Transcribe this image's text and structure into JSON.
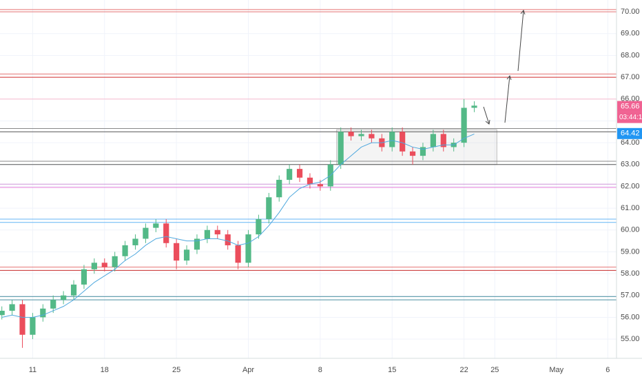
{
  "chart_data": {
    "type": "candlestick",
    "x": [
      8,
      9,
      10,
      11,
      12,
      13,
      14,
      15,
      16,
      17,
      18,
      19,
      20,
      21,
      22,
      23,
      24,
      25,
      26,
      27,
      28,
      29,
      30,
      31,
      32,
      33,
      34,
      35,
      36,
      37,
      38,
      39,
      40,
      41,
      42,
      43,
      44,
      45,
      46,
      47,
      48,
      49,
      50,
      51,
      52,
      53,
      54
    ],
    "open": [
      56.1,
      56.3,
      56.6,
      55.2,
      56.0,
      56.4,
      56.8,
      57.0,
      57.5,
      58.2,
      58.5,
      58.3,
      58.8,
      59.3,
      59.6,
      60.1,
      60.3,
      59.4,
      58.6,
      59.1,
      59.6,
      60.0,
      59.8,
      59.3,
      58.5,
      59.8,
      60.5,
      61.5,
      62.3,
      62.8,
      62.4,
      62.1,
      62.0,
      63.0,
      64.5,
      64.3,
      64.4,
      64.2,
      63.8,
      64.5,
      63.6,
      63.4,
      63.8,
      64.4,
      63.8,
      64.0,
      65.6
    ],
    "high": [
      56.5,
      56.8,
      56.8,
      56.2,
      56.6,
      57.0,
      57.2,
      57.7,
      58.4,
      58.7,
      58.7,
      59.0,
      59.5,
      59.8,
      60.3,
      60.5,
      60.5,
      59.6,
      59.3,
      59.8,
      60.2,
      60.2,
      60.0,
      59.5,
      60.0,
      60.7,
      61.7,
      62.5,
      63.0,
      63.0,
      62.6,
      62.3,
      63.2,
      64.7,
      64.7,
      64.6,
      64.6,
      64.4,
      64.7,
      64.7,
      63.8,
      64.0,
      64.6,
      64.6,
      64.2,
      66.0,
      65.9
    ],
    "low": [
      55.9,
      56.1,
      54.6,
      55.0,
      55.8,
      56.2,
      56.6,
      56.8,
      57.3,
      58.0,
      58.1,
      58.1,
      58.6,
      59.1,
      59.4,
      59.9,
      59.2,
      58.2,
      58.4,
      58.9,
      59.4,
      59.6,
      59.1,
      58.2,
      58.3,
      59.6,
      60.3,
      61.3,
      62.1,
      62.2,
      61.9,
      61.8,
      61.8,
      62.8,
      64.1,
      64.1,
      64.0,
      63.6,
      63.6,
      63.4,
      63.0,
      63.2,
      63.6,
      63.6,
      63.6,
      63.8,
      65.4
    ],
    "close": [
      56.3,
      56.6,
      55.2,
      56.0,
      56.4,
      56.8,
      57.0,
      57.5,
      58.2,
      58.5,
      58.3,
      58.8,
      59.3,
      59.6,
      60.1,
      60.3,
      59.4,
      58.6,
      59.1,
      59.6,
      60.0,
      59.8,
      59.3,
      58.5,
      59.8,
      60.5,
      61.5,
      62.3,
      62.8,
      62.4,
      62.1,
      62.0,
      63.0,
      64.5,
      64.3,
      64.4,
      64.2,
      63.8,
      64.5,
      63.6,
      63.4,
      63.8,
      64.4,
      63.8,
      64.0,
      65.6,
      65.7
    ],
    "up_color": "#53b987",
    "down_color": "#eb4d5c",
    "ma": {
      "color": "#4ea8de",
      "values": [
        56.0,
        56.1,
        56.0,
        56.0,
        56.1,
        56.3,
        56.5,
        56.8,
        57.2,
        57.6,
        57.9,
        58.2,
        58.6,
        58.9,
        59.3,
        59.6,
        59.7,
        59.6,
        59.5,
        59.5,
        59.6,
        59.6,
        59.5,
        59.3,
        59.4,
        59.7,
        60.2,
        60.8,
        61.5,
        61.9,
        62.1,
        62.2,
        62.5,
        63.0,
        63.4,
        63.8,
        64.0,
        64.0,
        64.1,
        64.0,
        63.8,
        63.7,
        63.8,
        63.9,
        63.9,
        64.2,
        64.4
      ]
    },
    "levels": [
      {
        "value": 70.1,
        "color": "#e57373"
      },
      {
        "value": 70.0,
        "color": "#e57373"
      },
      {
        "value": 67.15,
        "color": "#e57373"
      },
      {
        "value": 67.0,
        "color": "#d32f2f"
      },
      {
        "value": 66.0,
        "color": "#f8bbd0"
      },
      {
        "value": 64.65,
        "color": "#888888"
      },
      {
        "value": 64.5,
        "color": "#555555"
      },
      {
        "value": 63.15,
        "color": "#888888"
      },
      {
        "value": 63.0,
        "color": "#555555"
      },
      {
        "value": 62.1,
        "color": "#ce93d8"
      },
      {
        "value": 61.95,
        "color": "#e57bd8"
      },
      {
        "value": 60.5,
        "color": "#64b5f6"
      },
      {
        "value": 60.35,
        "color": "#64b5f6"
      },
      {
        "value": 58.3,
        "color": "#e57373"
      },
      {
        "value": 58.15,
        "color": "#c62828"
      },
      {
        "value": 56.95,
        "color": "#4a8fa0"
      },
      {
        "value": 56.8,
        "color": "#4a8fa0"
      }
    ],
    "box": {
      "x": [
        40.6,
        56.2
      ],
      "y": [
        63.0,
        64.6
      ]
    },
    "ylim": [
      54.12,
      70.54
    ],
    "xlim": [
      7.82,
      67.85
    ],
    "yticks": [
      {
        "value": 55,
        "label": "55.00"
      },
      {
        "value": 56,
        "label": "56.00"
      },
      {
        "value": 57,
        "label": "57.00"
      },
      {
        "value": 58,
        "label": "58.00"
      },
      {
        "value": 59,
        "label": "59.00"
      },
      {
        "value": 60,
        "label": "60.00"
      },
      {
        "value": 61,
        "label": "61.00"
      },
      {
        "value": 62,
        "label": "62.00"
      },
      {
        "value": 63,
        "label": "63.00"
      },
      {
        "value": 64,
        "label": "64.00"
      },
      {
        "value": 65,
        "label": "65.00"
      },
      {
        "value": 66,
        "label": "66.00"
      },
      {
        "value": 67,
        "label": "67.00"
      },
      {
        "value": 68,
        "label": "68.00"
      },
      {
        "value": 69,
        "label": "69.00"
      },
      {
        "value": 70,
        "label": "70.00"
      }
    ],
    "xticks": [
      {
        "value": 11,
        "label": "11"
      },
      {
        "value": 18,
        "label": "18"
      },
      {
        "value": 25,
        "label": "25"
      },
      {
        "value": 32,
        "label": "Apr"
      },
      {
        "value": 39,
        "label": "8"
      },
      {
        "value": 46,
        "label": "15"
      },
      {
        "value": 53,
        "label": "22"
      },
      {
        "value": 56,
        "label": "25"
      },
      {
        "value": 62,
        "label": "May"
      },
      {
        "value": 67,
        "label": "6"
      }
    ],
    "price_tags": [
      {
        "value": 65.66,
        "label": "65.66",
        "color": "#f06292"
      },
      {
        "value": 64.42,
        "label": "64.42",
        "color": "#2196f3"
      }
    ],
    "countdown": "03:44:18",
    "grid": true
  }
}
